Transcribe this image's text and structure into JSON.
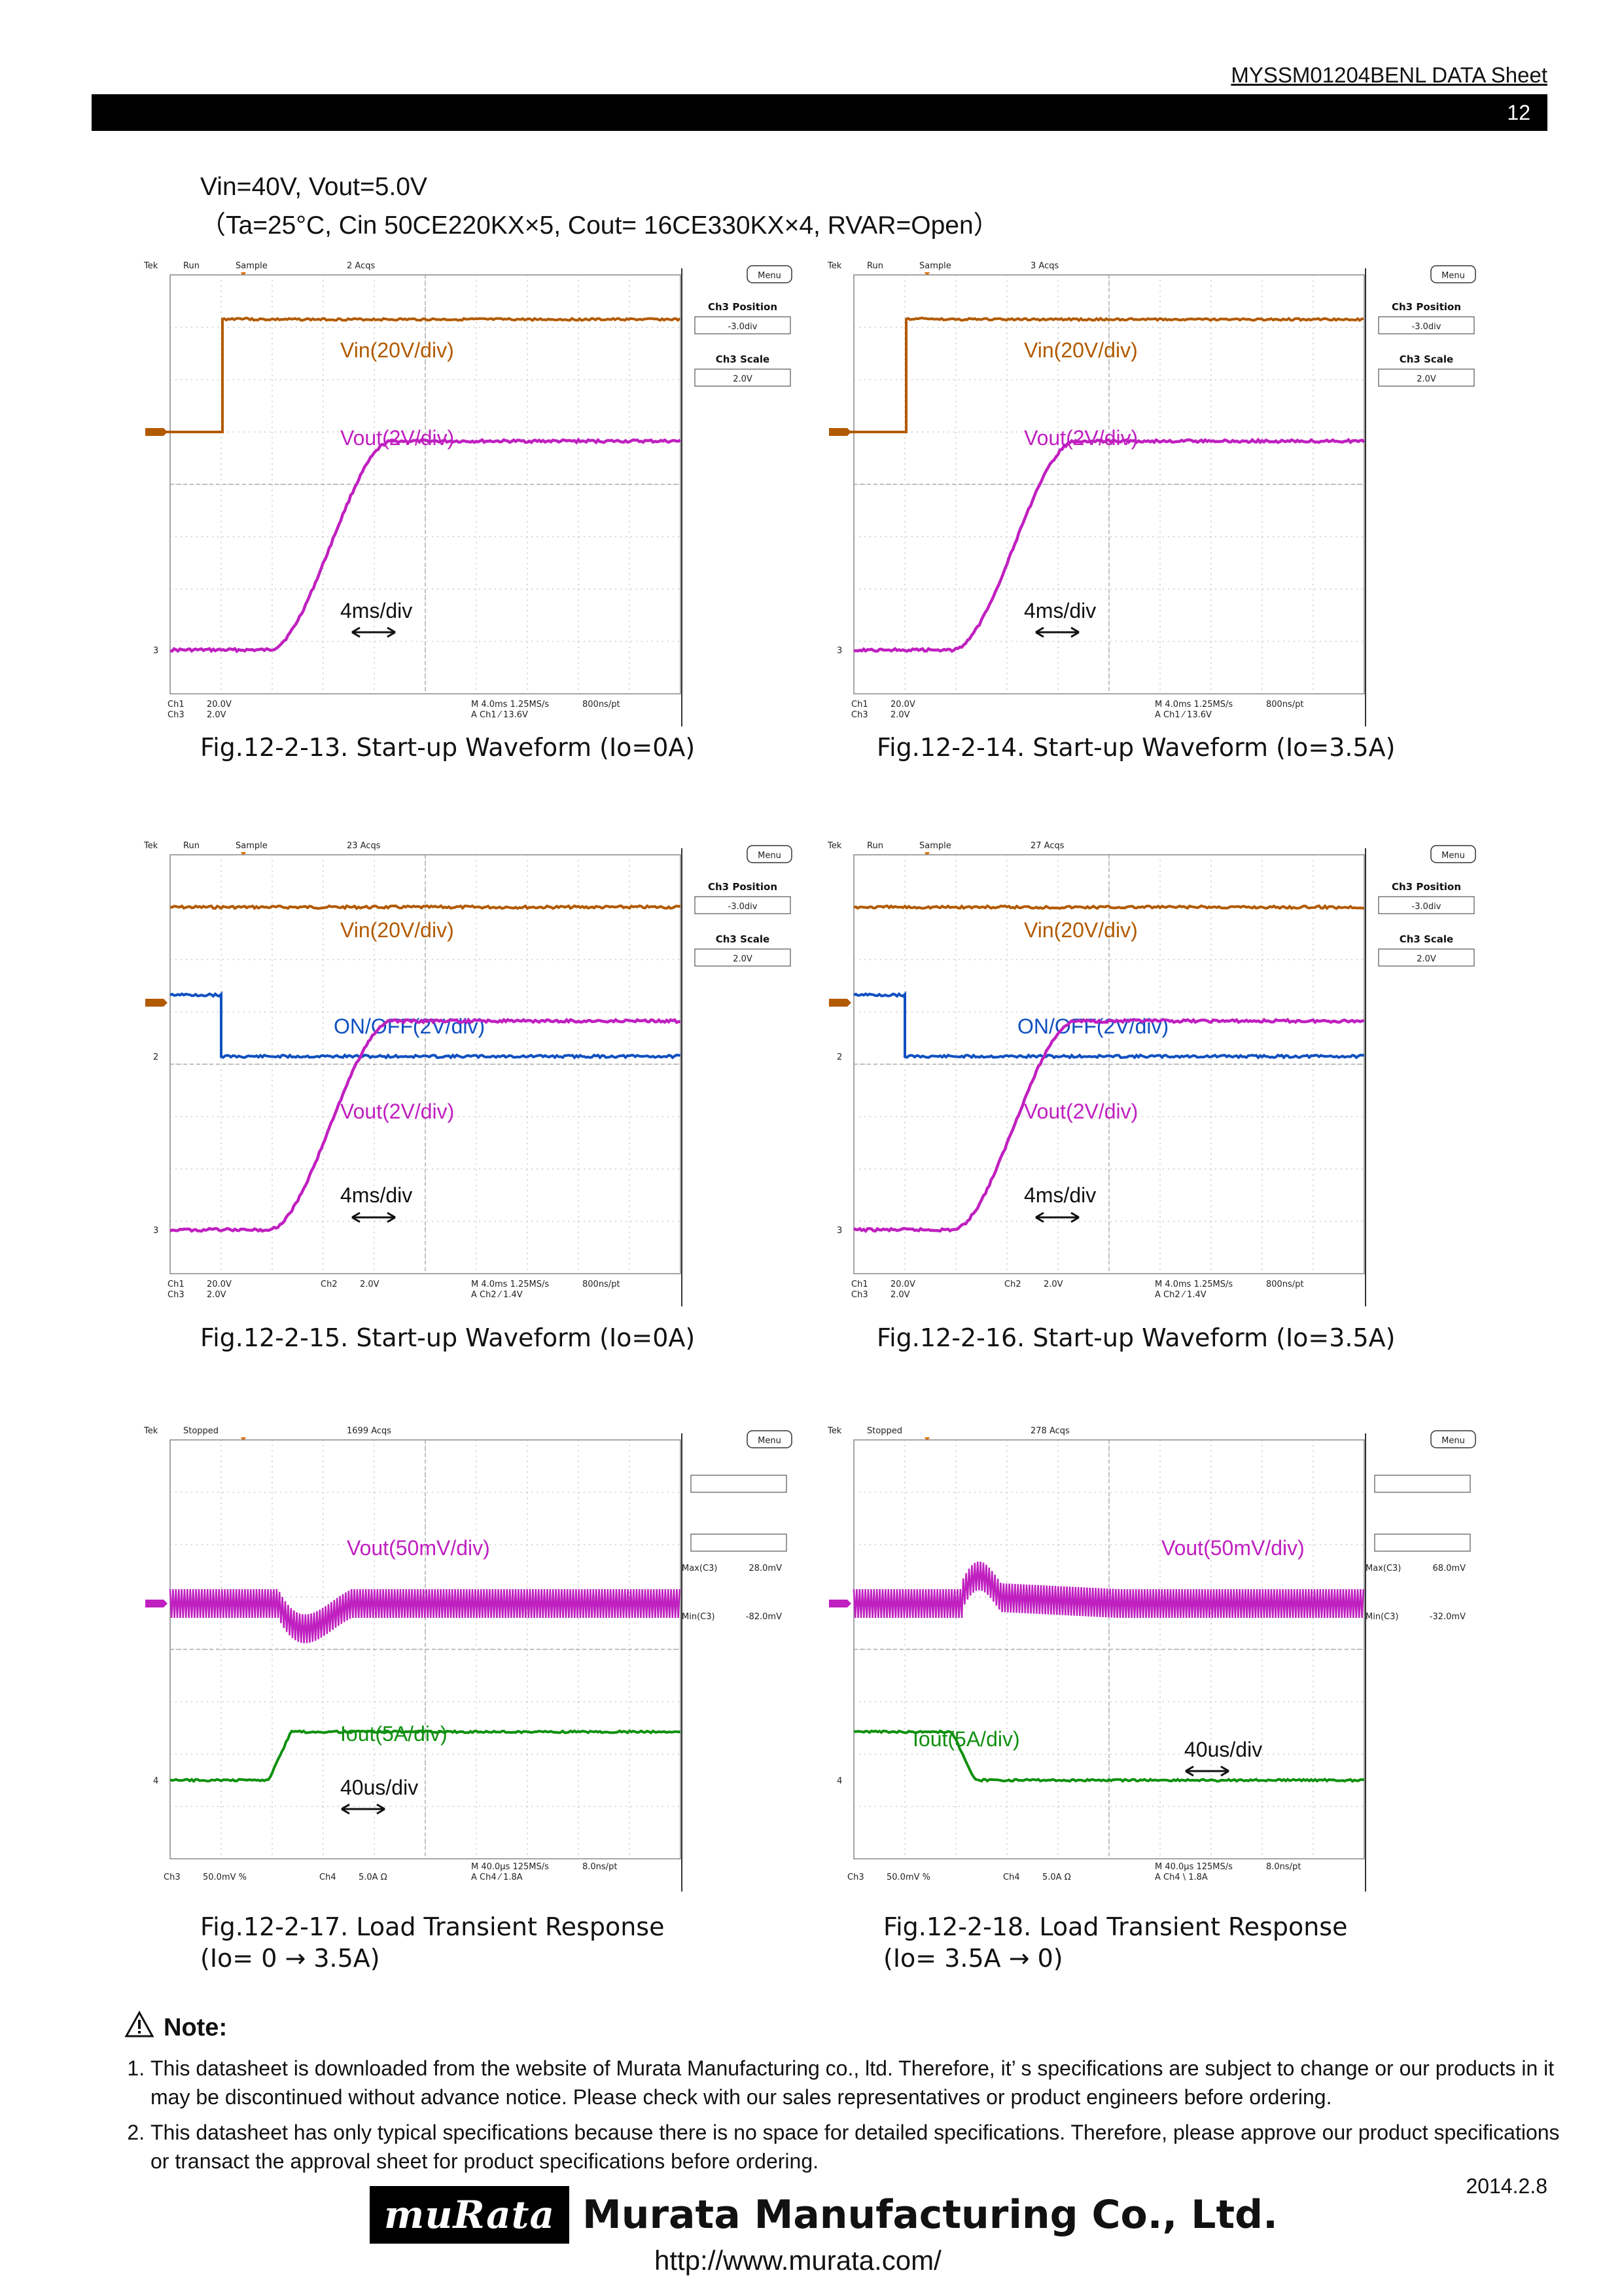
{
  "header": {
    "doc_title": "MYSSM01204BENL DATA Sheet",
    "page_number": "12"
  },
  "conditions": {
    "line1": "Vin=40V, Vout=5.0V",
    "line2": "（Ta=25°C, Cin 50CE220KX×5, Cout= 16CE330KX×4, RVAR=Open）"
  },
  "colors": {
    "vin": "#b25a00",
    "vout": "#c020c0",
    "onoff": "#1050c0",
    "iout": "#109010",
    "grid": "#b0b0b0"
  },
  "scope_common": {
    "brand": "Tek",
    "run": "Run",
    "stopped": "Stopped",
    "sample": "Sample",
    "menu": "Menu",
    "ch3_position": "Ch3 Position",
    "ch3_position_value": "-3.0div",
    "ch3_scale": "Ch3 Scale",
    "ch3_scale_value": "2.0V",
    "max_label": "Max(C3)",
    "min_label": "Min(C3)"
  },
  "scopes": [
    {
      "acqs": "2 Acqs",
      "labels": {
        "vin": "Vin(20V/div)",
        "vout": "Vout(2V/div)",
        "time": "4ms/div"
      },
      "readout": {
        "ch1": "Ch1",
        "ch1_scale": "20.0V",
        "ch3": "Ch3",
        "ch3_scale": "2.0V",
        "timebase": "M 4.0ms 1.25MS/s",
        "rate": "800ns/pt",
        "trigger": "A  Ch1  ⁄  13.6V"
      },
      "caption": "Fig.12-2-13. Start-up Waveform (Io=0A)"
    },
    {
      "acqs": "3 Acqs",
      "labels": {
        "vin": "Vin(20V/div)",
        "vout": "Vout(2V/div)",
        "time": "4ms/div"
      },
      "readout": {
        "ch1": "Ch1",
        "ch1_scale": "20.0V",
        "ch3": "Ch3",
        "ch3_scale": "2.0V",
        "timebase": "M 4.0ms 1.25MS/s",
        "rate": "800ns/pt",
        "trigger": "A  Ch1  ⁄  13.6V"
      },
      "caption": "Fig.12-2-14. Start-up Waveform (Io=3.5A)"
    },
    {
      "acqs": "23 Acqs",
      "labels": {
        "vin": "Vin(20V/div)",
        "onoff": "ON/OFF(2V/div)",
        "vout": "Vout(2V/div)",
        "time": "4ms/div"
      },
      "readout": {
        "ch1": "Ch1",
        "ch1_scale": "20.0V",
        "ch3": "Ch3",
        "ch3_scale": "2.0V",
        "ch2": "Ch2",
        "ch2_scale": "2.0V",
        "timebase": "M 4.0ms 1.25MS/s",
        "rate": "800ns/pt",
        "trigger": "A  Ch2  ⁄  1.4V"
      },
      "caption": "Fig.12-2-15. Start-up Waveform (Io=0A)"
    },
    {
      "acqs": "27 Acqs",
      "labels": {
        "vin": "Vin(20V/div)",
        "onoff": "ON/OFF(2V/div)",
        "vout": "Vout(2V/div)",
        "time": "4ms/div"
      },
      "readout": {
        "ch1": "Ch1",
        "ch1_scale": "20.0V",
        "ch3": "Ch3",
        "ch3_scale": "2.0V",
        "ch2": "Ch2",
        "ch2_scale": "2.0V",
        "timebase": "M 4.0ms 1.25MS/s",
        "rate": "800ns/pt",
        "trigger": "A  Ch2  ⁄  1.4V"
      },
      "caption": "Fig.12-2-16. Start-up Waveform (Io=3.5A)"
    },
    {
      "acqs": "1699 Acqs",
      "labels": {
        "vout": "Vout(50mV/div)",
        "iout": "Iout(5A/div)",
        "time": "40us/div"
      },
      "max_value": "28.0mV",
      "min_value": "-82.0mV",
      "readout": {
        "ch3": "Ch3",
        "ch3_scale": "50.0mV  %",
        "ch4": "Ch4",
        "ch4_scale": "5.0A   Ω",
        "timebase": "M 40.0μs 125MS/s",
        "rate": "8.0ns/pt",
        "trigger": "A  Ch4  ⁄  1.8A"
      },
      "caption": "Fig.12-2-17. Load Transient Response",
      "caption2": "(Io= 0 → 3.5A)"
    },
    {
      "acqs": "278 Acqs",
      "labels": {
        "vout": "Vout(50mV/div)",
        "iout": "Iout(5A/div)",
        "time": "40us/div"
      },
      "max_value": "68.0mV",
      "min_value": "-32.0mV",
      "readout": {
        "ch3": "Ch3",
        "ch3_scale": "50.0mV  %",
        "ch4": "Ch4",
        "ch4_scale": "5.0A   Ω",
        "timebase": "M 40.0μs 125MS/s",
        "rate": "8.0ns/pt",
        "trigger": "A  Ch4  \\  1.8A"
      },
      "caption": "Fig.12-2-18. Load Transient Response",
      "caption2": "(Io= 3.5A → 0)"
    }
  ],
  "note": {
    "title": "Note:",
    "items": [
      "This datasheet is downloaded from the website of Murata Manufacturing co., ltd. Therefore, it’ s specifications are subject to change or our products in it may be discontinued without advance notice. Please check with our sales representatives or product engineers before ordering.",
      "This datasheet has only typical specifications because there is no space for detailed specifications. Therefore, please approve our product specifications or transact the approval sheet for product specifications before ordering."
    ]
  },
  "footer": {
    "date": "2014.2.8",
    "logo_mark": "muRata",
    "company": "Murata Manufacturing Co., Ltd.",
    "url": "http://www.murata.com/"
  }
}
